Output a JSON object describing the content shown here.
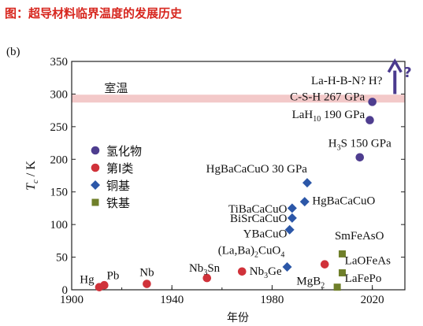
{
  "figure_title": "图：超导材料临界温度的发展历史",
  "chart_data": {
    "type": "scatter",
    "panel_label": "(b)",
    "xlabel": "年份",
    "ylabel_main": "T",
    "ylabel_sub": "c",
    "ylabel_unit": " / K",
    "xlim": [
      1900,
      2033
    ],
    "ylim": [
      0,
      350
    ],
    "x_ticks": [
      1900,
      1940,
      1980,
      2020
    ],
    "y_ticks": [
      0,
      50,
      100,
      150,
      200,
      250,
      300,
      350
    ],
    "grid": false,
    "room_temperature": {
      "label": "室温",
      "y": 293,
      "color": "#f3c9c9"
    },
    "legend": [
      {
        "name": "氢化物",
        "marker": "circle",
        "color": "#4e3d8f"
      },
      {
        "name": "第I类",
        "marker": "circle",
        "color": "#d0323a"
      },
      {
        "name": "铜基",
        "marker": "diamond",
        "color": "#2c57a8"
      },
      {
        "name": "铁基",
        "marker": "square",
        "color": "#6f7f2a"
      }
    ],
    "series": [
      {
        "name": "氢化物",
        "marker": "circle",
        "color": "#4e3d8f",
        "points": [
          {
            "x": 2015,
            "y": 203
          },
          {
            "x": 2019,
            "y": 260
          },
          {
            "x": 2020,
            "y": 288
          }
        ]
      },
      {
        "name": "第I类",
        "marker": "circle",
        "color": "#d0323a",
        "points": [
          {
            "x": 1911,
            "y": 4
          },
          {
            "x": 1913,
            "y": 7
          },
          {
            "x": 1930,
            "y": 9
          },
          {
            "x": 1954,
            "y": 18
          },
          {
            "x": 1968,
            "y": 28
          },
          {
            "x": 2001,
            "y": 39
          }
        ]
      },
      {
        "name": "铜基",
        "marker": "diamond",
        "color": "#2c57a8",
        "points": [
          {
            "x": 1986,
            "y": 35
          },
          {
            "x": 1987,
            "y": 92
          },
          {
            "x": 1988,
            "y": 110
          },
          {
            "x": 1988,
            "y": 125
          },
          {
            "x": 1993,
            "y": 135
          },
          {
            "x": 1994,
            "y": 164
          }
        ]
      },
      {
        "name": "铁基",
        "marker": "square",
        "color": "#6f7f2a",
        "points": [
          {
            "x": 2006,
            "y": 4
          },
          {
            "x": 2008,
            "y": 26
          },
          {
            "x": 2008,
            "y": 55
          }
        ]
      }
    ],
    "annotations": [
      {
        "parts": [
          {
            "t": "Hg"
          }
        ],
        "x": 1909,
        "y": 10,
        "anchor": "end"
      },
      {
        "parts": [
          {
            "t": "Pb"
          }
        ],
        "x": 1914,
        "y": 16,
        "anchor": "start"
      },
      {
        "parts": [
          {
            "t": "Nb"
          }
        ],
        "x": 1930,
        "y": 21,
        "anchor": "middle"
      },
      {
        "parts": [
          {
            "t": "Nb"
          },
          {
            "t": "3",
            "sub": true
          },
          {
            "t": "Sn"
          }
        ],
        "x": 1953,
        "y": 28,
        "anchor": "middle"
      },
      {
        "parts": [
          {
            "t": "Nb"
          },
          {
            "t": "3",
            "sub": true
          },
          {
            "t": "Ge"
          }
        ],
        "x": 1971,
        "y": 23,
        "anchor": "start"
      },
      {
        "parts": [
          {
            "t": "MgB"
          },
          {
            "t": "2",
            "sub": true
          }
        ],
        "x": 2001,
        "y": 8,
        "anchor": "end"
      },
      {
        "parts": [
          {
            "t": "(La,Ba)"
          },
          {
            "t": "2",
            "sub": true
          },
          {
            "t": "CuO"
          },
          {
            "t": "4",
            "sub": true
          }
        ],
        "x": 1985,
        "y": 55,
        "anchor": "end"
      },
      {
        "parts": [
          {
            "t": "YBaCuO"
          }
        ],
        "x": 1986,
        "y": 80,
        "anchor": "end"
      },
      {
        "parts": [
          {
            "t": "BiSrCaCuO"
          }
        ],
        "x": 1986,
        "y": 104,
        "anchor": "end"
      },
      {
        "parts": [
          {
            "t": "TiBaCaCuO"
          }
        ],
        "x": 1986,
        "y": 118,
        "anchor": "end"
      },
      {
        "parts": [
          {
            "t": "HgBaCaCuO"
          }
        ],
        "x": 1996,
        "y": 131,
        "anchor": "start"
      },
      {
        "parts": [
          {
            "t": "HgBaCaCuO 30 GPa"
          }
        ],
        "x": 1994,
        "y": 180,
        "anchor": "end"
      },
      {
        "parts": [
          {
            "t": "H"
          },
          {
            "t": "3",
            "sub": true
          },
          {
            "t": "S 150 GPa"
          }
        ],
        "x": 2015,
        "y": 219,
        "anchor": "middle"
      },
      {
        "parts": [
          {
            "t": "LaH"
          },
          {
            "t": "10",
            "sub": true
          },
          {
            "t": " 190 GPa"
          }
        ],
        "x": 2017,
        "y": 263,
        "anchor": "end"
      },
      {
        "parts": [
          {
            "t": "C-S-H 267 GPa"
          }
        ],
        "x": 2017,
        "y": 290,
        "anchor": "end"
      },
      {
        "parts": [
          {
            "t": "La-H-B-N?  H?"
          }
        ],
        "x": 2024,
        "y": 315,
        "anchor": "end"
      },
      {
        "parts": [
          {
            "t": "SmFeAsO"
          }
        ],
        "x": 2005,
        "y": 77,
        "anchor": "start"
      },
      {
        "parts": [
          {
            "t": "LaOFeAs"
          }
        ],
        "x": 2009,
        "y": 39,
        "anchor": "start"
      },
      {
        "parts": [
          {
            "t": "LaFePo"
          }
        ],
        "x": 2009,
        "y": 12,
        "anchor": "start"
      }
    ],
    "arrow": {
      "x": 2029,
      "from_y": 300,
      "to_y": 348,
      "label": "?",
      "color": "#4a3a8e"
    }
  }
}
